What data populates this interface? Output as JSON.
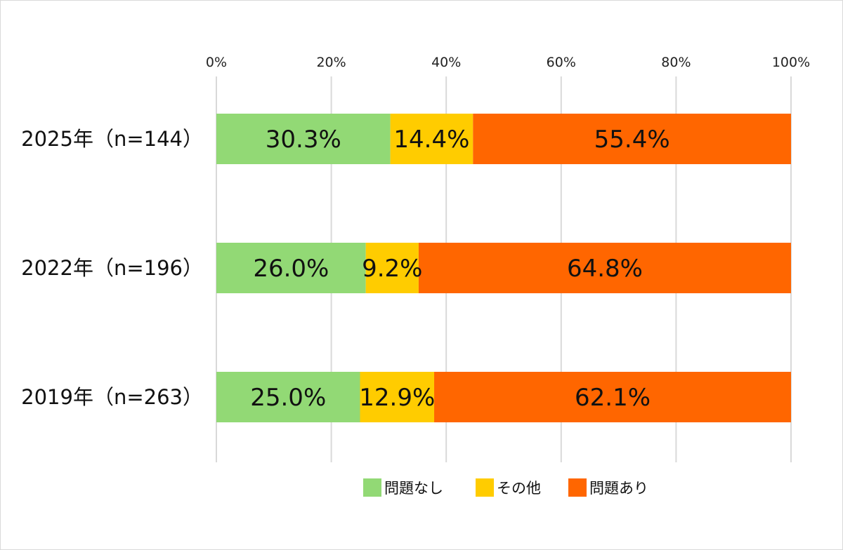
{
  "chart_data": {
    "type": "bar",
    "orientation": "horizontal",
    "stacked": "percent",
    "categories": [
      "2025年（n=144）",
      "2022年（n=196）",
      "2019年（n=263）"
    ],
    "series": [
      {
        "name": "問題なし",
        "color": "#92D975",
        "values": [
          30.3,
          26.0,
          25.0
        ],
        "labels": [
          "30.3%",
          "26.0%",
          "25.0%"
        ]
      },
      {
        "name": "その他",
        "color": "#FFCC00",
        "values": [
          14.4,
          9.2,
          12.9
        ],
        "labels": [
          "14.4%",
          "9.2%",
          "12.9%"
        ]
      },
      {
        "name": "問題あり",
        "color": "#FF6600",
        "values": [
          55.4,
          64.8,
          62.1
        ],
        "labels": [
          "55.4%",
          "64.8%",
          "62.1%"
        ]
      }
    ],
    "xlim": [
      0,
      100
    ],
    "x_ticks": [
      "0%",
      "20%",
      "40%",
      "60%",
      "80%",
      "100%"
    ],
    "x_tick_values": [
      0,
      20,
      40,
      60,
      80,
      100
    ],
    "x_axis_position": "top",
    "grid": true,
    "legend": "bottom",
    "title": "",
    "xlabel": "",
    "ylabel": ""
  }
}
